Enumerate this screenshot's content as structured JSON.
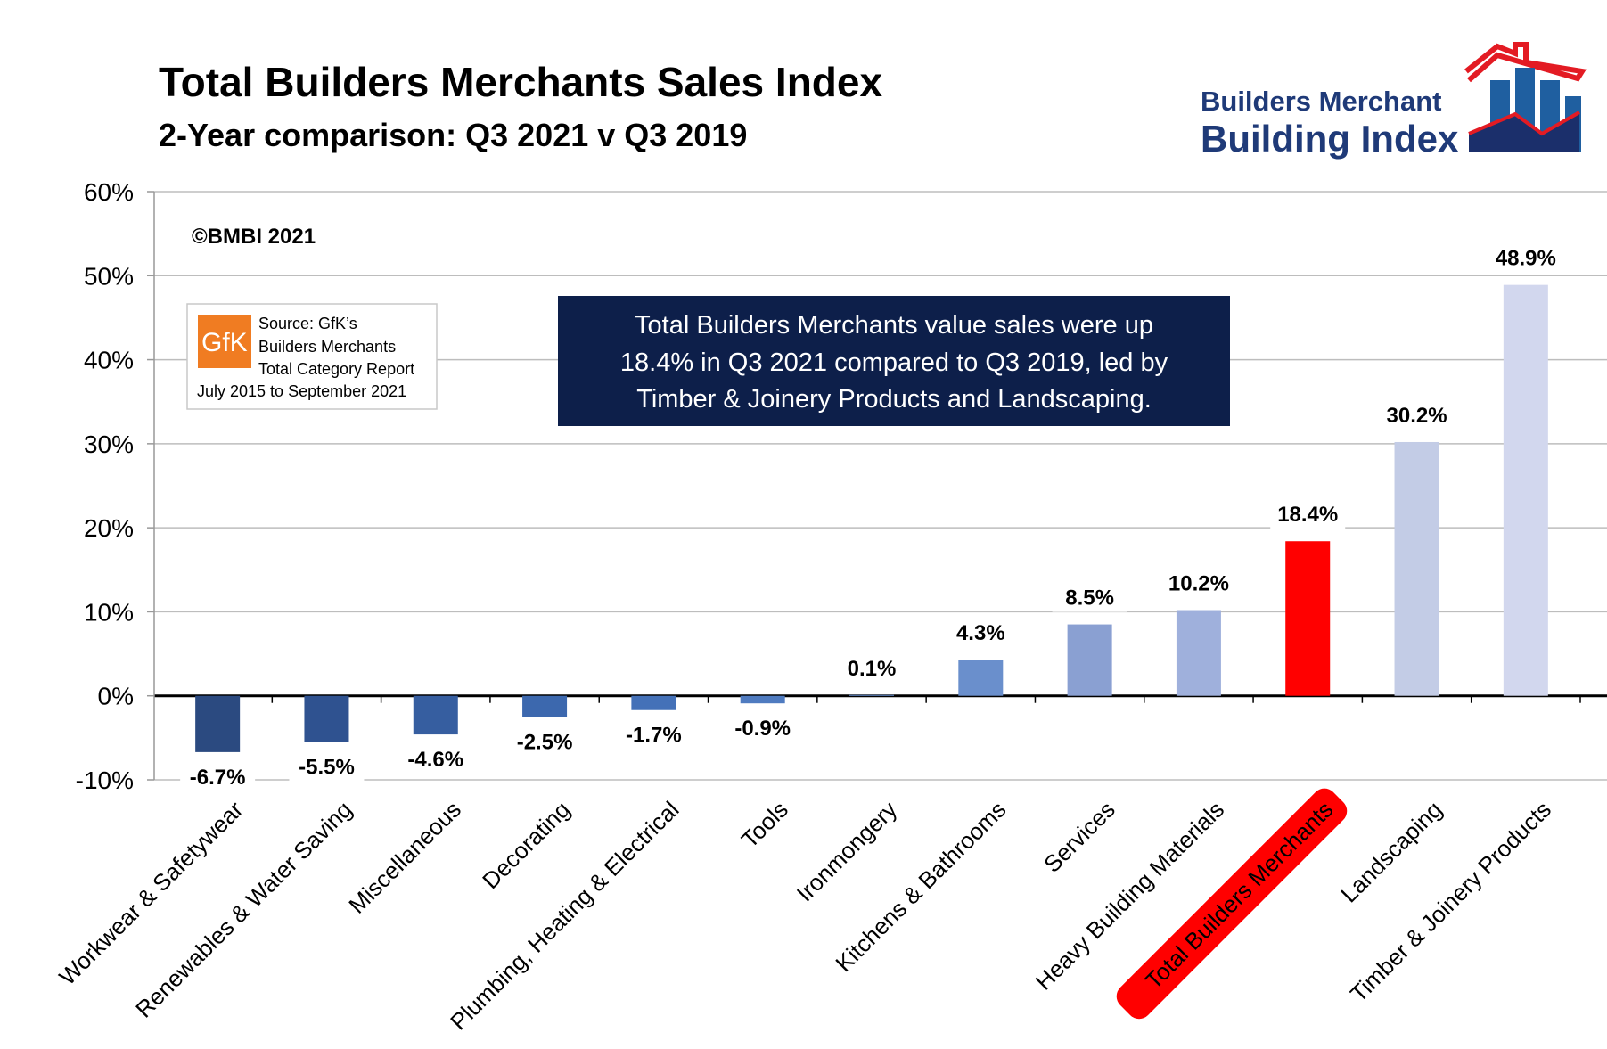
{
  "header": {
    "title": "Total Builders Merchants Sales Index",
    "subtitle": "2-Year comparison: Q3 2021 v Q3 2019"
  },
  "logo": {
    "line1": "Builders Merchant",
    "line2": "Building Index",
    "colors": {
      "text": "#1f3a78",
      "roof": "#e31b23",
      "bars": "#1f5fa0"
    }
  },
  "copyright": "©BMBI 2021",
  "source": {
    "badge": "GfK",
    "line1": "Source: GfK’s",
    "line2": "Builders Merchants",
    "line3": "Total Category Report",
    "line4": "July 2015 to September 2021"
  },
  "annotation": {
    "line1": "Total Builders Merchants value sales were up",
    "line2": "18.4% in Q3 2021 compared to Q3 2019, led by",
    "line3": "Timber & Joinery Products and Landscaping.",
    "background": "#0d1f4a"
  },
  "chart_data": {
    "type": "bar",
    "title": "Total Builders Merchants Sales Index",
    "subtitle": "2-Year comparison: Q3 2021 v Q3 2019",
    "categories": [
      "Workwear & Safetywear",
      "Renewables & Water Saving",
      "Miscellaneous",
      "Decorating",
      "Plumbing, Heating & Electrical",
      "Tools",
      "Ironmongery",
      "Kitchens & Bathrooms",
      "Services",
      "Heavy Building Materials",
      "Total Builders Merchants",
      "Landscaping",
      "Timber & Joinery Products"
    ],
    "values": [
      -6.7,
      -5.5,
      -4.6,
      -2.5,
      -1.7,
      -0.9,
      0.1,
      4.3,
      8.5,
      10.2,
      18.4,
      30.2,
      48.9
    ],
    "data_labels": [
      "-6.7%",
      "-5.5%",
      "-4.6%",
      "-2.5%",
      "-1.7%",
      "-0.9%",
      "0.1%",
      "4.3%",
      "8.5%",
      "10.2%",
      "18.4%",
      "30.2%",
      "48.9%"
    ],
    "colors": [
      "#2b4a80",
      "#2f5290",
      "#365ea0",
      "#3c68ae",
      "#4471b8",
      "#4f7bc0",
      "#5f87c6",
      "#6a8fcc",
      "#8aa0d2",
      "#9fb0dc",
      "#ff0000",
      "#c3cce6",
      "#d2d7ee"
    ],
    "highlight_category": "Total Builders Merchants",
    "highlight_color": "#ff0000",
    "ylim": [
      -10,
      60
    ],
    "yticks": [
      -10,
      0,
      10,
      20,
      30,
      40,
      50,
      60
    ],
    "ytick_labels": [
      "-10%",
      "0%",
      "10%",
      "20%",
      "30%",
      "40%",
      "50%",
      "60%"
    ],
    "grid": true,
    "legend": "none",
    "xlabel": "",
    "ylabel": ""
  }
}
